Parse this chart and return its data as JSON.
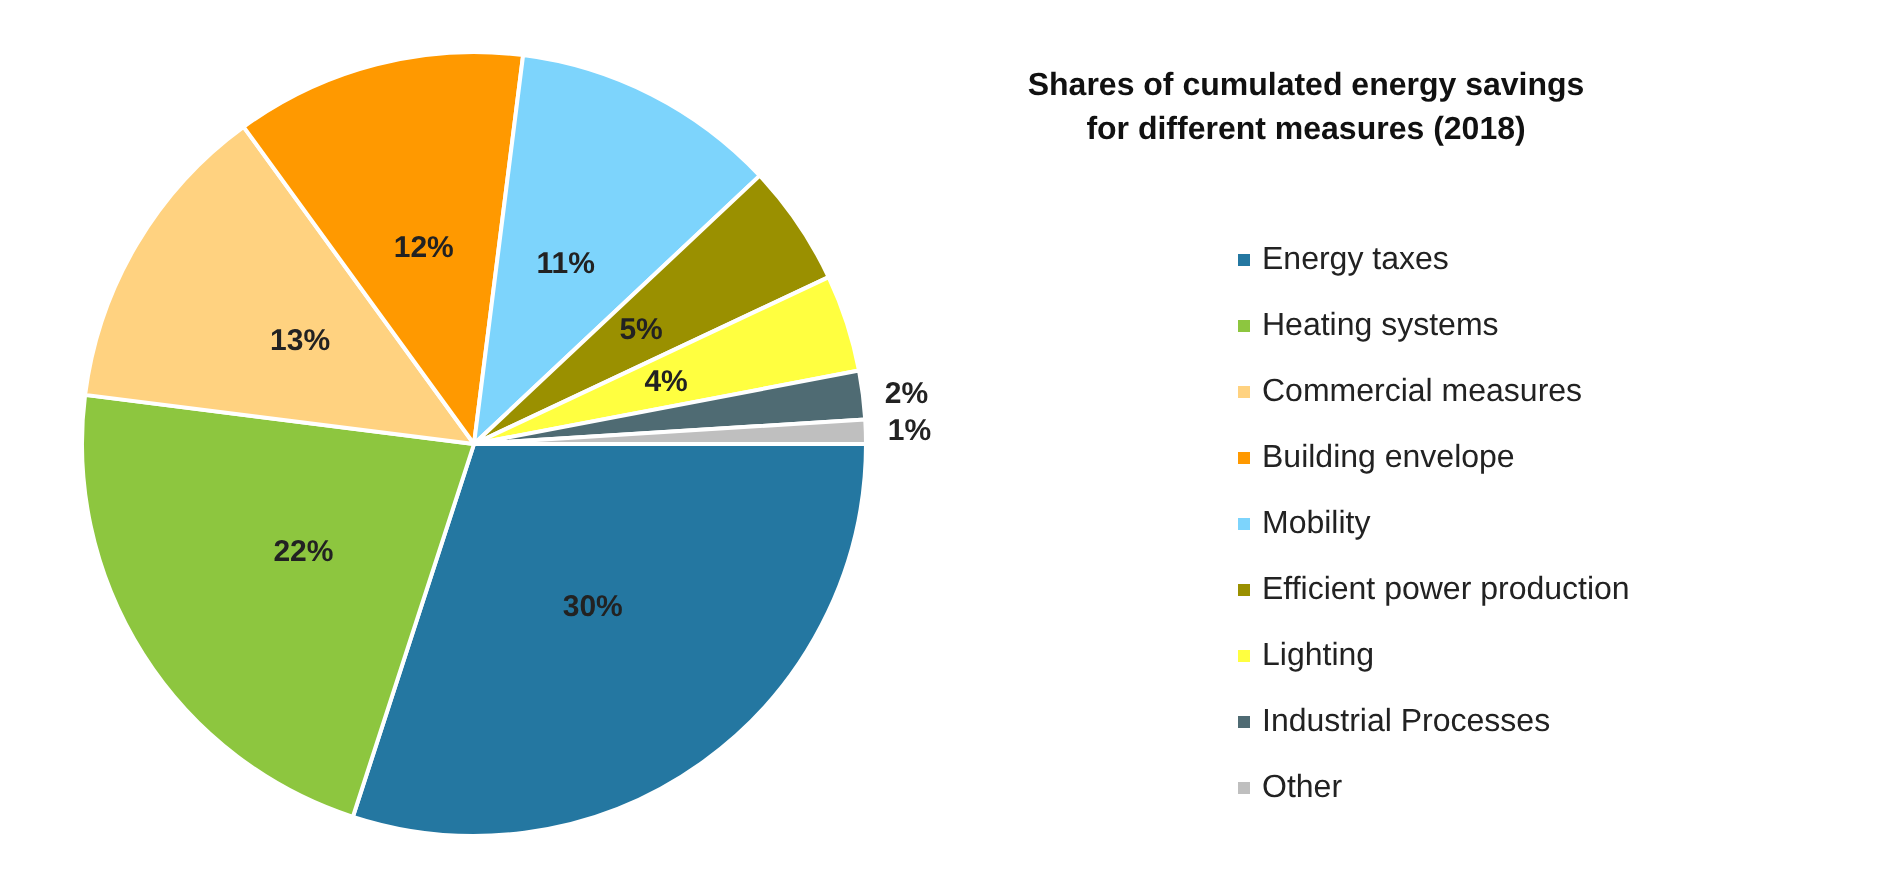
{
  "chart_data": {
    "type": "pie",
    "title": "Shares of cumulated energy savings\nfor different measures (2018)",
    "categories": [
      "Energy taxes",
      "Heating systems",
      "Commercial measures",
      "Building envelope",
      "Mobility",
      "Efficient power production",
      "Lighting",
      "Industrial Processes",
      "Other"
    ],
    "values": [
      30,
      22,
      13,
      12,
      11,
      5,
      4,
      2,
      1
    ],
    "colors": [
      "#2477a1",
      "#8dc63f",
      "#ffd280",
      "#ff9900",
      "#7dd4fc",
      "#9a9000",
      "#ffff40",
      "#4f6b73",
      "#bfbfbf"
    ],
    "value_labels": [
      "30%",
      "22%",
      "13%",
      "12%",
      "11%",
      "5%",
      "4%",
      "2%",
      "1%"
    ],
    "legend": "right"
  }
}
